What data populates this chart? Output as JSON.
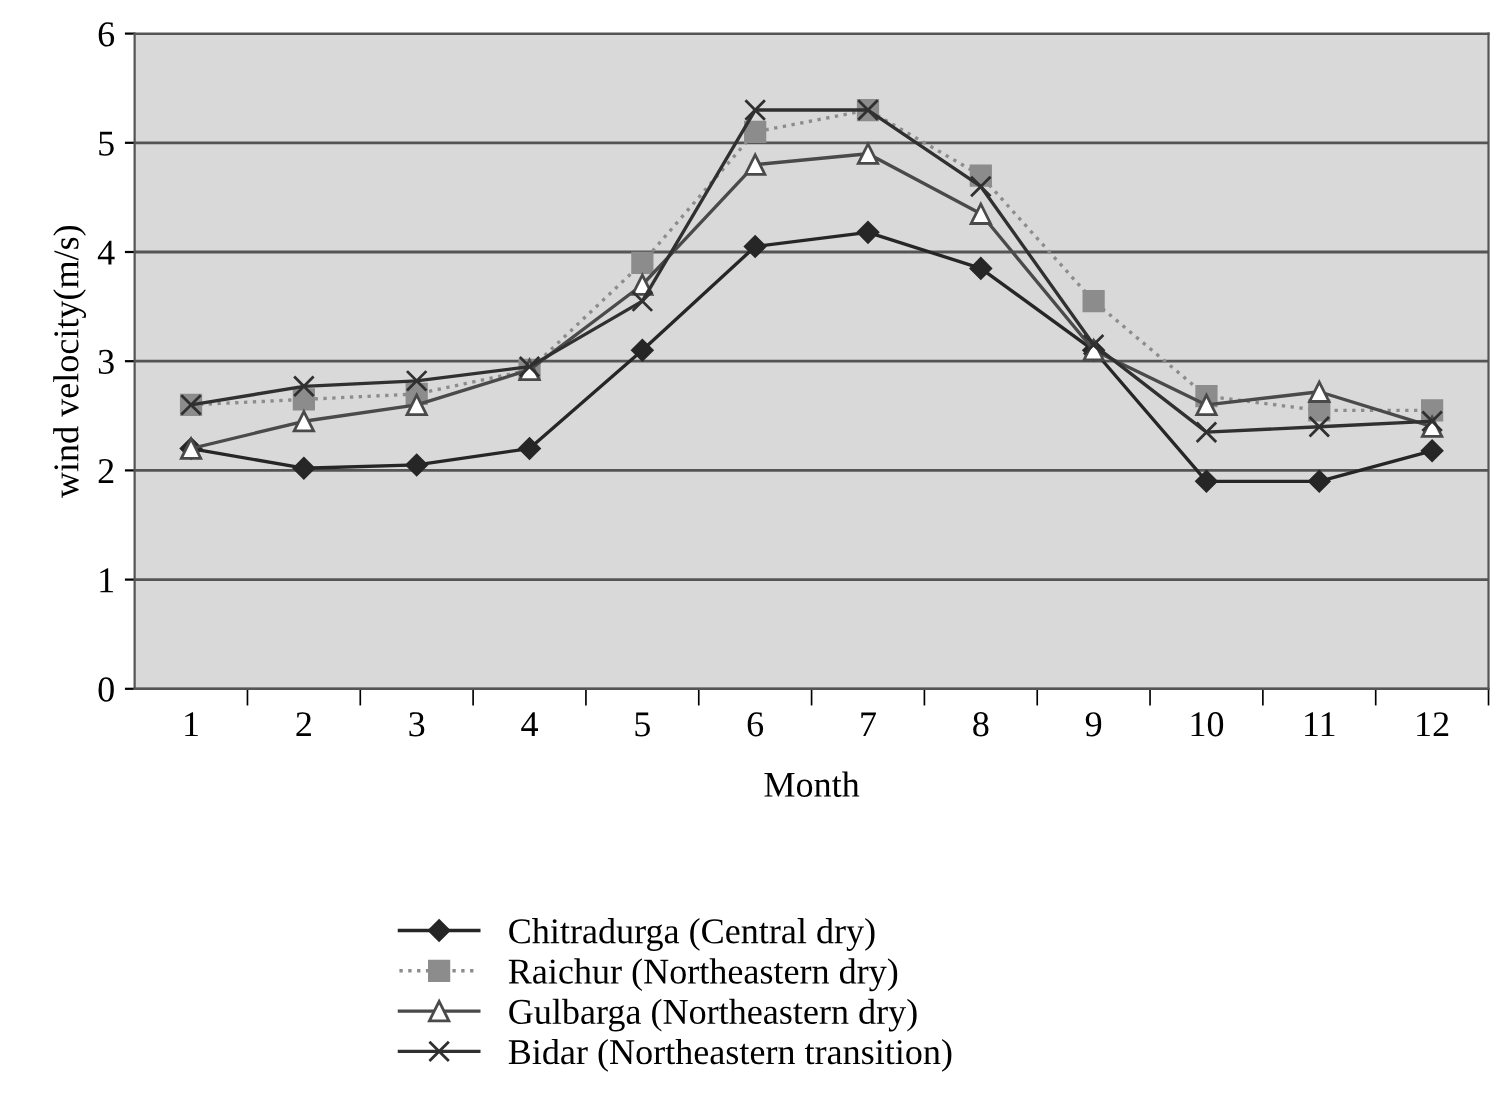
{
  "chart_data": {
    "type": "line",
    "xlabel": "Month",
    "ylabel": "wind velocity(m/s)",
    "categories": [
      "1",
      "2",
      "3",
      "4",
      "5",
      "6",
      "7",
      "8",
      "9",
      "10",
      "11",
      "12"
    ],
    "ylim": [
      0,
      6
    ],
    "yticks": [
      0,
      1,
      2,
      3,
      4,
      5,
      6
    ],
    "grid": "y",
    "legend": "bottom",
    "series": [
      {
        "name": "Chitradurga (Central dry)",
        "color": "#262626",
        "marker": "diamond",
        "line_style": "solid",
        "values": [
          2.2,
          2.02,
          2.05,
          2.2,
          3.1,
          4.05,
          4.18,
          3.85,
          3.1,
          1.9,
          1.9,
          2.18
        ]
      },
      {
        "name": "Raichur (Northeastern dry)",
        "color": "#8c8c8c",
        "marker": "square",
        "line_style": "dotted",
        "values": [
          2.6,
          2.65,
          2.7,
          2.92,
          3.9,
          5.1,
          5.3,
          4.7,
          3.55,
          2.68,
          2.55,
          2.55
        ]
      },
      {
        "name": "Gulbarga (Northeastern dry)",
        "color": "#4a4a4a",
        "marker": "triangle",
        "line_style": "solid",
        "values": [
          2.2,
          2.45,
          2.6,
          2.92,
          3.7,
          4.8,
          4.9,
          4.35,
          3.1,
          2.6,
          2.72,
          2.4
        ]
      },
      {
        "name": "Bidar (Northeastern transition)",
        "color": "#303030",
        "marker": "cross",
        "line_style": "solid",
        "values": [
          2.6,
          2.77,
          2.82,
          2.95,
          3.55,
          5.3,
          5.3,
          4.6,
          3.15,
          2.35,
          2.4,
          2.45
        ]
      }
    ]
  }
}
